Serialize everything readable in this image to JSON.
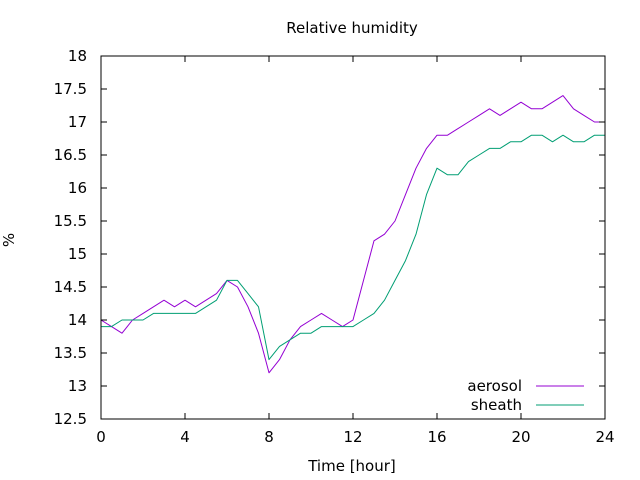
{
  "chart_data": {
    "type": "line",
    "title": "Relative humidity",
    "xlabel": "Time [hour]",
    "ylabel": "%",
    "xlim": [
      0,
      24
    ],
    "ylim": [
      12.5,
      18
    ],
    "xticks": [
      0,
      4,
      8,
      12,
      16,
      20,
      24
    ],
    "yticks": [
      12.5,
      13,
      13.5,
      14,
      14.5,
      15,
      15.5,
      16,
      16.5,
      17,
      17.5,
      18
    ],
    "grid": false,
    "legend": "bottom-right",
    "series": [
      {
        "name": "aerosol",
        "color": "#9400d3",
        "x": [
          0,
          0.5,
          1,
          1.5,
          2,
          2.5,
          3,
          3.5,
          4,
          4.5,
          5,
          5.5,
          6,
          6.5,
          7,
          7.5,
          8,
          8.5,
          9,
          9.5,
          10,
          10.5,
          11,
          11.5,
          12,
          12.5,
          13,
          13.5,
          14,
          14.5,
          15,
          15.5,
          16,
          16.5,
          17,
          17.5,
          18,
          18.5,
          19,
          19.5,
          20,
          20.5,
          21,
          21.5,
          22,
          22.5,
          23,
          23.5,
          24
        ],
        "y": [
          14.0,
          13.9,
          13.8,
          14.0,
          14.1,
          14.2,
          14.3,
          14.2,
          14.3,
          14.2,
          14.3,
          14.4,
          14.6,
          14.5,
          14.2,
          13.8,
          13.2,
          13.4,
          13.7,
          13.9,
          14.0,
          14.1,
          14.0,
          13.9,
          14.0,
          14.6,
          15.2,
          15.3,
          15.5,
          15.9,
          16.3,
          16.6,
          16.8,
          16.8,
          16.9,
          17.0,
          17.1,
          17.2,
          17.1,
          17.2,
          17.3,
          17.2,
          17.2,
          17.3,
          17.4,
          17.2,
          17.1,
          17.0,
          17.0
        ]
      },
      {
        "name": "sheath",
        "color": "#009e73",
        "x": [
          0,
          0.5,
          1,
          1.5,
          2,
          2.5,
          3,
          3.5,
          4,
          4.5,
          5,
          5.5,
          6,
          6.5,
          7,
          7.5,
          8,
          8.5,
          9,
          9.5,
          10,
          10.5,
          11,
          11.5,
          12,
          12.5,
          13,
          13.5,
          14,
          14.5,
          15,
          15.5,
          16,
          16.5,
          17,
          17.5,
          18,
          18.5,
          19,
          19.5,
          20,
          20.5,
          21,
          21.5,
          22,
          22.5,
          23,
          23.5,
          24
        ],
        "y": [
          13.9,
          13.9,
          14.0,
          14.0,
          14.0,
          14.1,
          14.1,
          14.1,
          14.1,
          14.1,
          14.2,
          14.3,
          14.6,
          14.6,
          14.4,
          14.2,
          13.4,
          13.6,
          13.7,
          13.8,
          13.8,
          13.9,
          13.9,
          13.9,
          13.9,
          14.0,
          14.1,
          14.3,
          14.6,
          14.9,
          15.3,
          15.9,
          16.3,
          16.2,
          16.2,
          16.4,
          16.5,
          16.6,
          16.6,
          16.7,
          16.7,
          16.8,
          16.8,
          16.7,
          16.8,
          16.7,
          16.7,
          16.8,
          16.8
        ]
      }
    ]
  }
}
